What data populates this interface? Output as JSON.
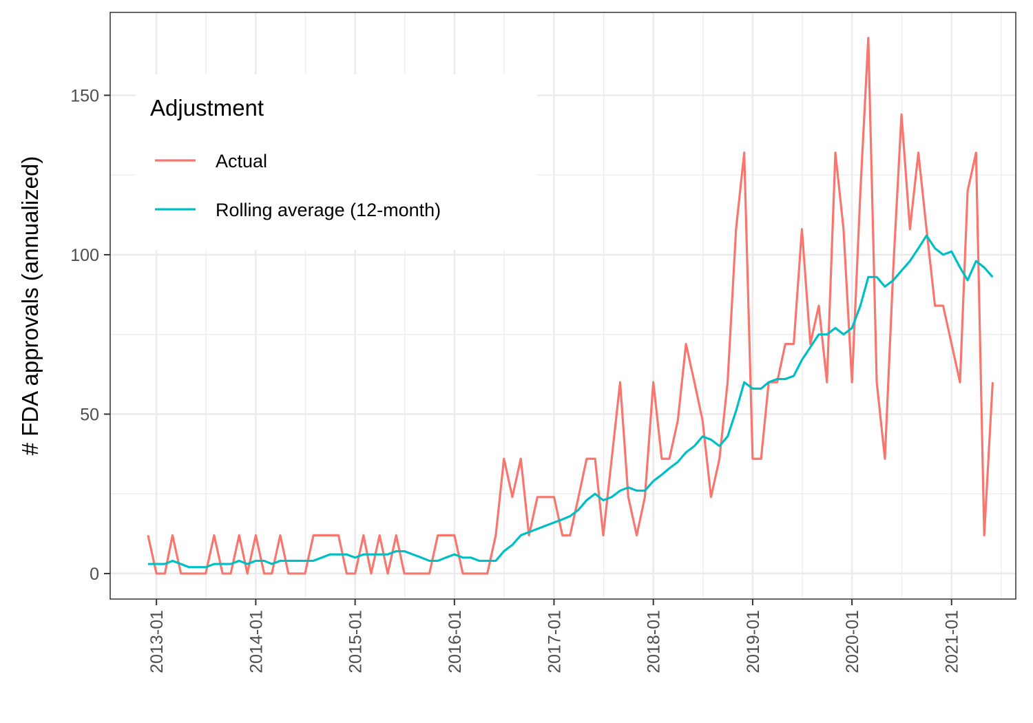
{
  "chart_data": {
    "type": "line",
    "xlabel": "",
    "ylabel": "# FDA approvals (annualized)",
    "ylim": [
      -8,
      176
    ],
    "xlim": [
      "2012-07-15",
      "2021-08-25"
    ],
    "x_ticks": [
      "2013-01-01",
      "2014-01-01",
      "2015-01-01",
      "2016-01-01",
      "2017-01-01",
      "2018-01-01",
      "2019-01-01",
      "2020-01-01",
      "2021-01-01"
    ],
    "x_tick_labels": [
      "2013-01",
      "2014-01",
      "2015-01",
      "2016-01",
      "2017-01",
      "2018-01",
      "2019-01",
      "2020-01",
      "2021-01"
    ],
    "y_ticks": [
      0,
      50,
      100,
      150
    ],
    "y_tick_labels": [
      "0",
      "50",
      "100",
      "150"
    ],
    "grid": true,
    "legend": {
      "title": "Adjustment",
      "position": "top-left inside"
    },
    "start": "2012-12-01",
    "series": [
      {
        "name": "Actual",
        "color": "#F8766D",
        "values": [
          12,
          0,
          0,
          12,
          0,
          0,
          0,
          0,
          12,
          0,
          0,
          12,
          0,
          12,
          0,
          0,
          12,
          0,
          0,
          0,
          12,
          12,
          12,
          12,
          0,
          0,
          12,
          0,
          12,
          0,
          12,
          0,
          0,
          0,
          0,
          12,
          12,
          12,
          0,
          0,
          0,
          0,
          12,
          36,
          24,
          36,
          12,
          24,
          24,
          24,
          12,
          12,
          24,
          36,
          36,
          12,
          36,
          60,
          24,
          12,
          24,
          60,
          36,
          36,
          48,
          72,
          60,
          48,
          24,
          36,
          60,
          108,
          132,
          36,
          36,
          60,
          60,
          72,
          72,
          108,
          72,
          84,
          60,
          132,
          108,
          60,
          120,
          168,
          60,
          36,
          96,
          144,
          108,
          132,
          108,
          84,
          84,
          72,
          60,
          120,
          132,
          12,
          60
        ]
      },
      {
        "name": "Rolling average (12-month)",
        "color": "#00BFC4",
        "values": [
          3,
          3,
          3,
          4,
          3,
          2,
          2,
          2,
          3,
          3,
          3,
          4,
          3,
          4,
          4,
          3,
          4,
          4,
          4,
          4,
          4,
          5,
          6,
          6,
          6,
          5,
          6,
          6,
          6,
          6,
          7,
          7,
          6,
          5,
          4,
          4,
          5,
          6,
          5,
          5,
          4,
          4,
          4,
          7,
          9,
          12,
          13,
          14,
          15,
          16,
          17,
          18,
          20,
          23,
          25,
          23,
          24,
          26,
          27,
          26,
          26,
          29,
          31,
          33,
          35,
          38,
          40,
          43,
          42,
          40,
          43,
          51,
          60,
          58,
          58,
          60,
          61,
          61,
          62,
          67,
          71,
          75,
          75,
          77,
          75,
          77,
          84,
          93,
          93,
          90,
          92,
          95,
          98,
          102,
          106,
          102,
          100,
          101,
          96,
          92,
          98,
          96,
          93
        ]
      }
    ]
  }
}
